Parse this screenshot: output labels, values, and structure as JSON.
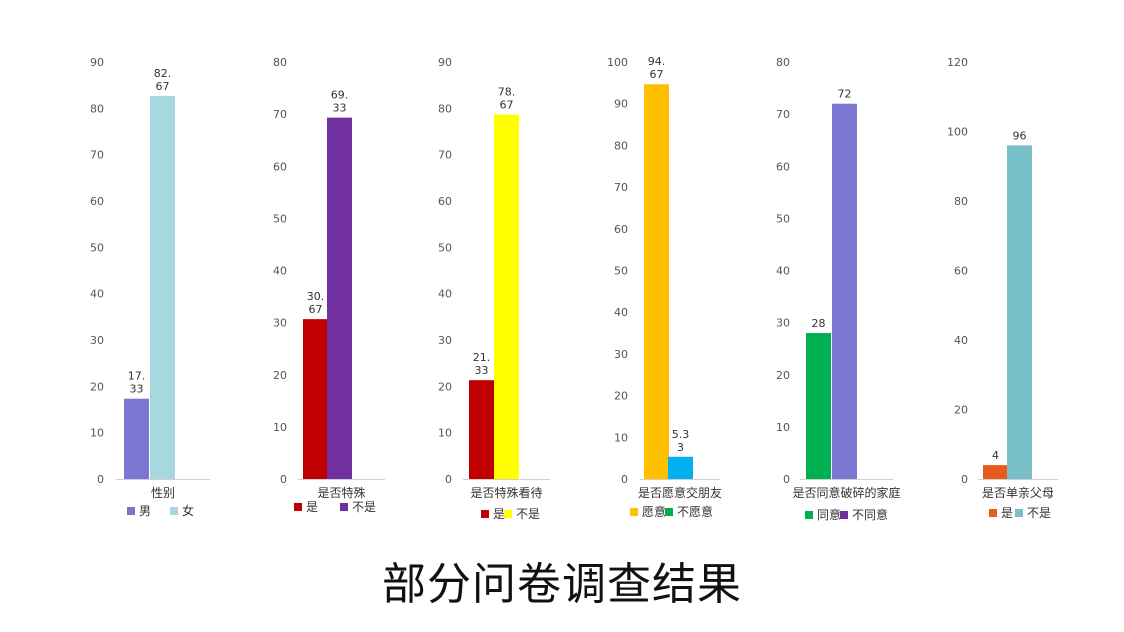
{
  "caption": "部分问卷调查结果",
  "chart_data": [
    {
      "type": "bar",
      "category": "性别",
      "ylim": [
        0,
        90
      ],
      "ticks": [
        0,
        10,
        20,
        30,
        40,
        50,
        60,
        70,
        80,
        90
      ],
      "series": [
        {
          "name": "男",
          "value": 17.33,
          "label": [
            "17.",
            "33"
          ],
          "color": "#7b77d0"
        },
        {
          "name": "女",
          "value": 82.67,
          "label": [
            "82.",
            "67"
          ],
          "color": "#a7d8e0"
        }
      ],
      "legend": "bottom"
    },
    {
      "type": "bar",
      "category": "是否特殊",
      "ylim": [
        0,
        80
      ],
      "ticks": [
        0,
        10,
        20,
        30,
        40,
        50,
        60,
        70,
        80
      ],
      "series": [
        {
          "name": "是",
          "value": 30.67,
          "label": [
            "30.",
            "67"
          ],
          "color": "#c00000"
        },
        {
          "name": "不是",
          "value": 69.33,
          "label": [
            "69.",
            "33"
          ],
          "color": "#7030a0"
        }
      ],
      "legend": "bottom"
    },
    {
      "type": "bar",
      "category": "是否特殊看待",
      "ylim": [
        0,
        90
      ],
      "ticks": [
        0,
        10,
        20,
        30,
        40,
        50,
        60,
        70,
        80,
        90
      ],
      "series": [
        {
          "name": "是",
          "value": 21.33,
          "label": [
            "21.",
            "33"
          ],
          "color": "#c00000"
        },
        {
          "name": "不是",
          "value": 78.67,
          "label": [
            "78.",
            "67"
          ],
          "color": "#ffff00"
        }
      ],
      "legend": "bottom"
    },
    {
      "type": "bar",
      "category": "是否愿意交朋友",
      "ylim": [
        0,
        100
      ],
      "ticks": [
        0,
        10,
        20,
        30,
        40,
        50,
        60,
        70,
        80,
        90,
        100
      ],
      "series": [
        {
          "name": "愿意",
          "value": 94.67,
          "label": [
            "94.",
            "67"
          ],
          "color": "#ffc000"
        },
        {
          "name": "不愿意",
          "value": 5.33,
          "label": [
            "5.3",
            "3"
          ],
          "color": "#00b0f0",
          "legend_color": "#00b050"
        }
      ],
      "legend": "bottom"
    },
    {
      "type": "bar",
      "category": "是否同意破碎的家庭",
      "ylim": [
        0,
        80
      ],
      "ticks": [
        0,
        10,
        20,
        30,
        40,
        50,
        60,
        70,
        80
      ],
      "series": [
        {
          "name": "同意",
          "value": 28,
          "label": [
            "28"
          ],
          "color": "#00b050"
        },
        {
          "name": "不同意",
          "value": 72,
          "label": [
            "72"
          ],
          "color": "#7b77d0",
          "legend_color": "#7030a0"
        }
      ],
      "legend": "bottom"
    },
    {
      "type": "bar",
      "category": "是否单亲父母",
      "ylim": [
        0,
        120
      ],
      "ticks": [
        0,
        20,
        40,
        60,
        80,
        100,
        120
      ],
      "series": [
        {
          "name": "是",
          "value": 4,
          "label": [
            "4"
          ],
          "color": "#e85b1b"
        },
        {
          "name": "不是",
          "value": 96,
          "label": [
            "96"
          ],
          "color": "#78bfc8"
        }
      ],
      "legend": "bottom"
    }
  ]
}
